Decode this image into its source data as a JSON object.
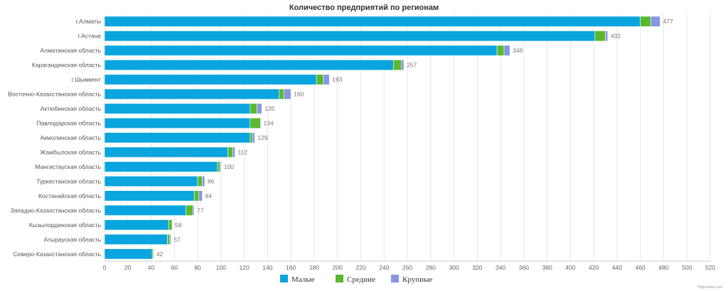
{
  "chart_data": {
    "type": "bar",
    "orientation": "horizontal",
    "stacked": true,
    "title": "Количество предприятий по регионам",
    "categories": [
      "г.Алматы",
      "г.Астана",
      "Алматинская область",
      "Карагандинская область",
      "г.Шымкент",
      "Восточно-Казахстанская область",
      "Актюбинская область",
      "Павлодарская область",
      "Акмолинская область",
      "Жамбылская область",
      "Мангистауская область",
      "Туркестанская область",
      "Костанайская область",
      "Западно-Казахстанская область",
      "Кызылординская область",
      "Атырауская область",
      "Северо-Казахстанская область"
    ],
    "series": [
      {
        "name": "Малые",
        "color": "#0aa5de",
        "values": [
          460,
          421,
          337,
          248,
          182,
          150,
          125,
          125,
          125,
          106,
          97,
          80,
          77,
          70,
          55,
          54,
          41
        ]
      },
      {
        "name": "Средние",
        "color": "#5cb82d",
        "values": [
          9,
          9,
          6,
          7,
          6,
          4,
          6,
          9,
          2,
          4,
          2,
          4,
          4,
          6,
          3,
          2,
          1
        ]
      },
      {
        "name": "Крупные",
        "color": "#8596e2",
        "values": [
          8,
          2,
          5,
          2,
          5,
          6,
          4,
          0,
          2,
          2,
          1,
          2,
          3,
          1,
          0,
          1,
          0
        ]
      }
    ],
    "totals": [
      477,
      432,
      348,
      257,
      193,
      160,
      135,
      134,
      129,
      112,
      100,
      86,
      84,
      77,
      58,
      57,
      42
    ],
    "xlim": [
      0,
      520
    ],
    "xticks": [
      0,
      20,
      40,
      60,
      80,
      100,
      120,
      140,
      160,
      180,
      200,
      220,
      240,
      260,
      280,
      300,
      320,
      340,
      360,
      380,
      400,
      420,
      440,
      460,
      480,
      500,
      520
    ],
    "grid": true,
    "legend_position": "bottom",
    "credits": "Highcharts.com"
  }
}
